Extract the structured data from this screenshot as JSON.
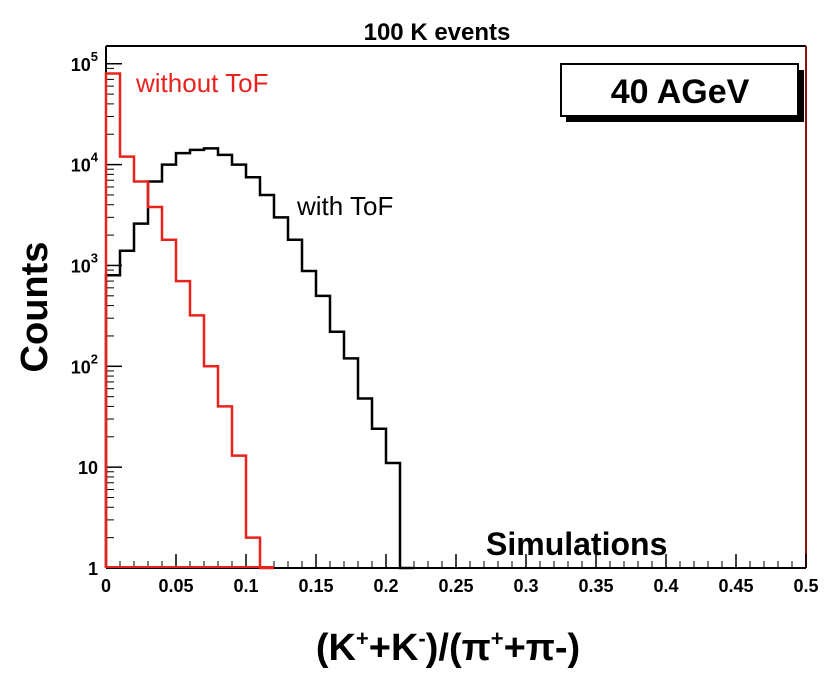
{
  "chart_data": {
    "type": "histogram",
    "title": "100 K events",
    "xlabel": {
      "parts": [
        "(K",
        "+",
        "+K",
        "-",
        ")/(π",
        "+",
        "+π-)"
      ]
    },
    "ylabel": "Counts",
    "yscale": "log",
    "xlim": [
      0,
      0.5
    ],
    "ylim": [
      1,
      150000
    ],
    "xticks": [
      0,
      0.05,
      0.1,
      0.15,
      0.2,
      0.25,
      0.3,
      0.35,
      0.4,
      0.45,
      0.5
    ],
    "xtick_labels": [
      "0",
      "0.05",
      "0.1",
      "0.15",
      "0.2",
      "0.25",
      "0.3",
      "0.35",
      "0.4",
      "0.45",
      "0.5"
    ],
    "yticks": [
      1,
      10,
      100,
      1000,
      10000,
      100000
    ],
    "ytick_labels": [
      {
        "base": "1",
        "exp": ""
      },
      {
        "base": "10",
        "exp": ""
      },
      {
        "base": "10",
        "exp": "2"
      },
      {
        "base": "10",
        "exp": "3"
      },
      {
        "base": "10",
        "exp": "4"
      },
      {
        "base": "10",
        "exp": "5"
      }
    ],
    "bin_edges": [
      0,
      0.01,
      0.02,
      0.03,
      0.04,
      0.05,
      0.06,
      0.07,
      0.08,
      0.09,
      0.1,
      0.11,
      0.12,
      0.13,
      0.14,
      0.15,
      0.16,
      0.17,
      0.18,
      0.19,
      0.2,
      0.21,
      0.22
    ],
    "series": [
      {
        "name": "without ToF",
        "color": "#e8231e",
        "values": [
          80000,
          12000,
          6800,
          3800,
          1800,
          700,
          320,
          100,
          40,
          13,
          2,
          1
        ]
      },
      {
        "name": "with ToF",
        "color": "#000000",
        "values": [
          800,
          1400,
          2600,
          6800,
          10000,
          13000,
          14000,
          14500,
          12500,
          10000,
          7500,
          5000,
          3000,
          1800,
          880,
          500,
          220,
          120,
          48,
          24,
          11,
          1
        ]
      }
    ],
    "annotations": {
      "without_tof": "without ToF",
      "with_tof": "with ToF",
      "energy": "40 AGeV",
      "simulations": "Simulations"
    },
    "frame_right_color": "#8b1010"
  }
}
